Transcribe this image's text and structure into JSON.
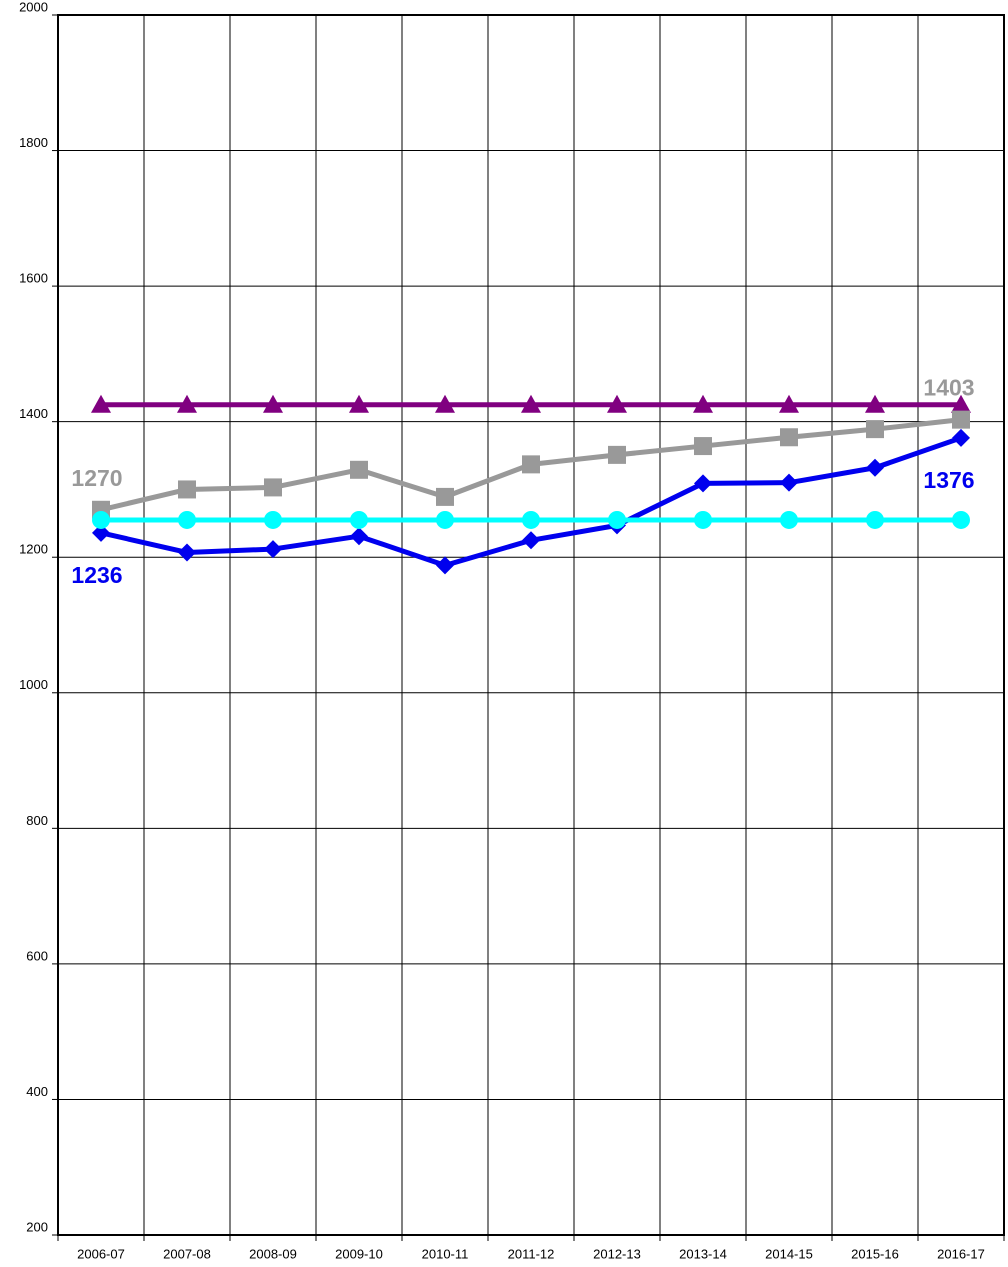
{
  "chart_data": {
    "type": "line",
    "categories": [
      "2006-07",
      "2007-08",
      "2008-09",
      "2009-10",
      "2010-11",
      "2011-12",
      "2012-13",
      "2013-14",
      "2014-15",
      "2015-16",
      "2016-17"
    ],
    "series": [
      {
        "color": "#800080",
        "marker": "triangle",
        "values": [
          1425,
          1425,
          1425,
          1425,
          1425,
          1425,
          1425,
          1425,
          1425,
          1425,
          1425
        ]
      },
      {
        "color": "#999999",
        "marker": "square",
        "end_labels": "above",
        "values": [
          1270,
          1300,
          1303,
          1329,
          1289,
          1337,
          1351,
          1364,
          1377,
          1389,
          1403
        ]
      },
      {
        "color": "#0000ee",
        "marker": "diamond",
        "end_labels": "below",
        "values": [
          1236,
          1207,
          1212,
          1231,
          1188,
          1225,
          1247,
          1309,
          1310,
          1332,
          1376
        ]
      },
      {
        "color": "#00ffff",
        "marker": "circle",
        "values": [
          1255,
          1255,
          1255,
          1255,
          1255,
          1255,
          1255,
          1255,
          1255,
          1255,
          1255
        ]
      }
    ],
    "ylim": [
      200,
      2000
    ],
    "yticks": [
      200,
      400,
      600,
      800,
      1000,
      1200,
      1400,
      1600,
      1800,
      2000
    ],
    "grid": true
  }
}
